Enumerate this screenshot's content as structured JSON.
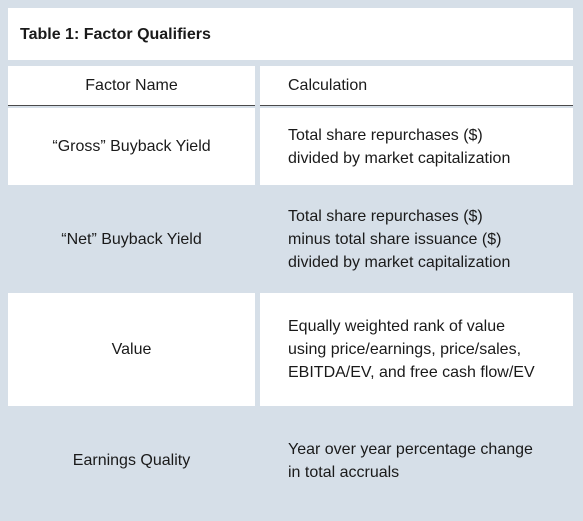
{
  "table": {
    "title": "Table 1: Factor Qualifiers",
    "headers": {
      "factor_name": "Factor Name",
      "calculation": "Calculation"
    },
    "rows": [
      {
        "factor": "“Gross” Buyback Yield",
        "calculation": "Total share repurchases ($)\ndivided by market capitalization"
      },
      {
        "factor": "“Net” Buyback Yield",
        "calculation": "Total share repurchases ($)\nminus total share issuance ($)\ndivided by market capitalization"
      },
      {
        "factor": "Value",
        "calculation": "Equally weighted rank of value\nusing price/earnings, price/sales,\nEBITDA/EV, and free cash flow/EV"
      },
      {
        "factor": "Earnings Quality",
        "calculation": "Year over year percentage change\nin total accruals"
      }
    ]
  }
}
